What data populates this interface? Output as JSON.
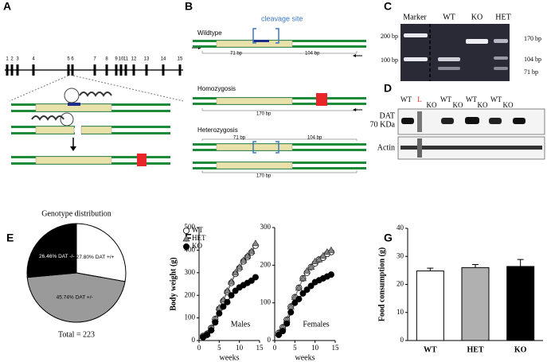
{
  "panel_a": {
    "letter": "A",
    "exon_numbers": [
      "1",
      "2",
      "3",
      "4",
      "5",
      "6",
      "7",
      "8",
      "9",
      "10",
      "11",
      "12",
      "13",
      "14",
      "15"
    ]
  },
  "panel_b": {
    "letter": "B",
    "wildtype": "Wildtype",
    "cleavage": "cleavage site",
    "wt_left": "71 bp",
    "wt_right": "104 bp",
    "homozygosis": "Homozygosis",
    "homo_size": "170 bp",
    "heterozygosis": "Heterozygosis",
    "het_left": "71 bp",
    "het_right": "104 bp",
    "het_size": "170 bp"
  },
  "panel_c": {
    "letter": "C",
    "lanes": [
      "Marker",
      "WT",
      "KO",
      "HET"
    ],
    "left_sizes": [
      "200 bp",
      "100 bp"
    ],
    "right_sizes": [
      "170 bp",
      "104 bp",
      "71 bp"
    ]
  },
  "panel_d": {
    "letter": "D",
    "lanes": [
      "WT",
      "L",
      "KO",
      "WT",
      "KO",
      "WT",
      "KO",
      "WT",
      "KO"
    ],
    "protein": "DAT",
    "weight": "70 KDa",
    "control": "Actin"
  },
  "chart_data": [
    {
      "type": "pie",
      "letter": "E",
      "title": "Genotype distribution",
      "footnote": "Total = 223",
      "categories": [
        "DAT +/+",
        "DAT +/-",
        "DAT -/-"
      ],
      "values": [
        27.8,
        45.74,
        26.46
      ],
      "value_labels": [
        "27.80%",
        "45.74%",
        "26.46%"
      ],
      "colors": [
        "#ffffff",
        "#9a9a9a",
        "#000000"
      ]
    },
    {
      "type": "line",
      "letter": "F",
      "annotation": "Males",
      "x_label": "weeks",
      "y_label": "Body weight (g)",
      "x": [
        1,
        2,
        3,
        4,
        5,
        6,
        7,
        8,
        9,
        10,
        11,
        12,
        13,
        14
      ],
      "xlim": [
        0,
        15
      ],
      "xticks": [
        0,
        5,
        10,
        15
      ],
      "ylim": [
        0,
        500
      ],
      "yticks": [
        0,
        100,
        200,
        300,
        400,
        500
      ],
      "series": [
        {
          "name": "WT",
          "marker": "open-circle",
          "color": "#555555",
          "values": [
            20,
            30,
            55,
            95,
            140,
            175,
            215,
            255,
            295,
            320,
            350,
            370,
            390,
            420
          ]
        },
        {
          "name": "HET",
          "marker": "triangle",
          "color": "#888888",
          "values": [
            20,
            30,
            55,
            95,
            145,
            180,
            220,
            260,
            300,
            325,
            355,
            375,
            395,
            430
          ]
        },
        {
          "name": "KO",
          "marker": "filled-circle",
          "color": "#000000",
          "values": [
            15,
            25,
            45,
            80,
            120,
            150,
            170,
            200,
            220,
            235,
            245,
            255,
            265,
            280
          ]
        }
      ]
    },
    {
      "type": "line",
      "annotation": "Females",
      "x_label": "weeks",
      "x": [
        1,
        2,
        3,
        4,
        5,
        6,
        7,
        8,
        9,
        10,
        11,
        12,
        13,
        14
      ],
      "xlim": [
        0,
        15
      ],
      "xticks": [
        0,
        5,
        10,
        15
      ],
      "ylim": [
        0,
        300
      ],
      "yticks": [
        0,
        100,
        200,
        300
      ],
      "series": [
        {
          "marker": "open-circle",
          "color": "#555555",
          "values": [
            20,
            35,
            55,
            90,
            115,
            140,
            165,
            180,
            195,
            205,
            215,
            220,
            230,
            235
          ]
        },
        {
          "marker": "triangle",
          "color": "#888888",
          "values": [
            20,
            35,
            55,
            90,
            115,
            140,
            165,
            185,
            195,
            210,
            215,
            225,
            235,
            240
          ]
        },
        {
          "marker": "filled-circle",
          "color": "#000000",
          "values": [
            15,
            25,
            45,
            75,
            100,
            110,
            125,
            135,
            145,
            155,
            160,
            165,
            170,
            175
          ]
        }
      ]
    },
    {
      "type": "bar",
      "letter": "G",
      "y_label": "Food consumption (g)",
      "categories": [
        "WT",
        "HET",
        "KO"
      ],
      "values": [
        24.8,
        26.0,
        26.4
      ],
      "errors": [
        1.0,
        1.1,
        2.5
      ],
      "colors": [
        "#ffffff",
        "#b0b0b0",
        "#000000"
      ],
      "ylim": [
        0,
        40
      ],
      "yticks": [
        0,
        10,
        20,
        30,
        40
      ]
    }
  ]
}
